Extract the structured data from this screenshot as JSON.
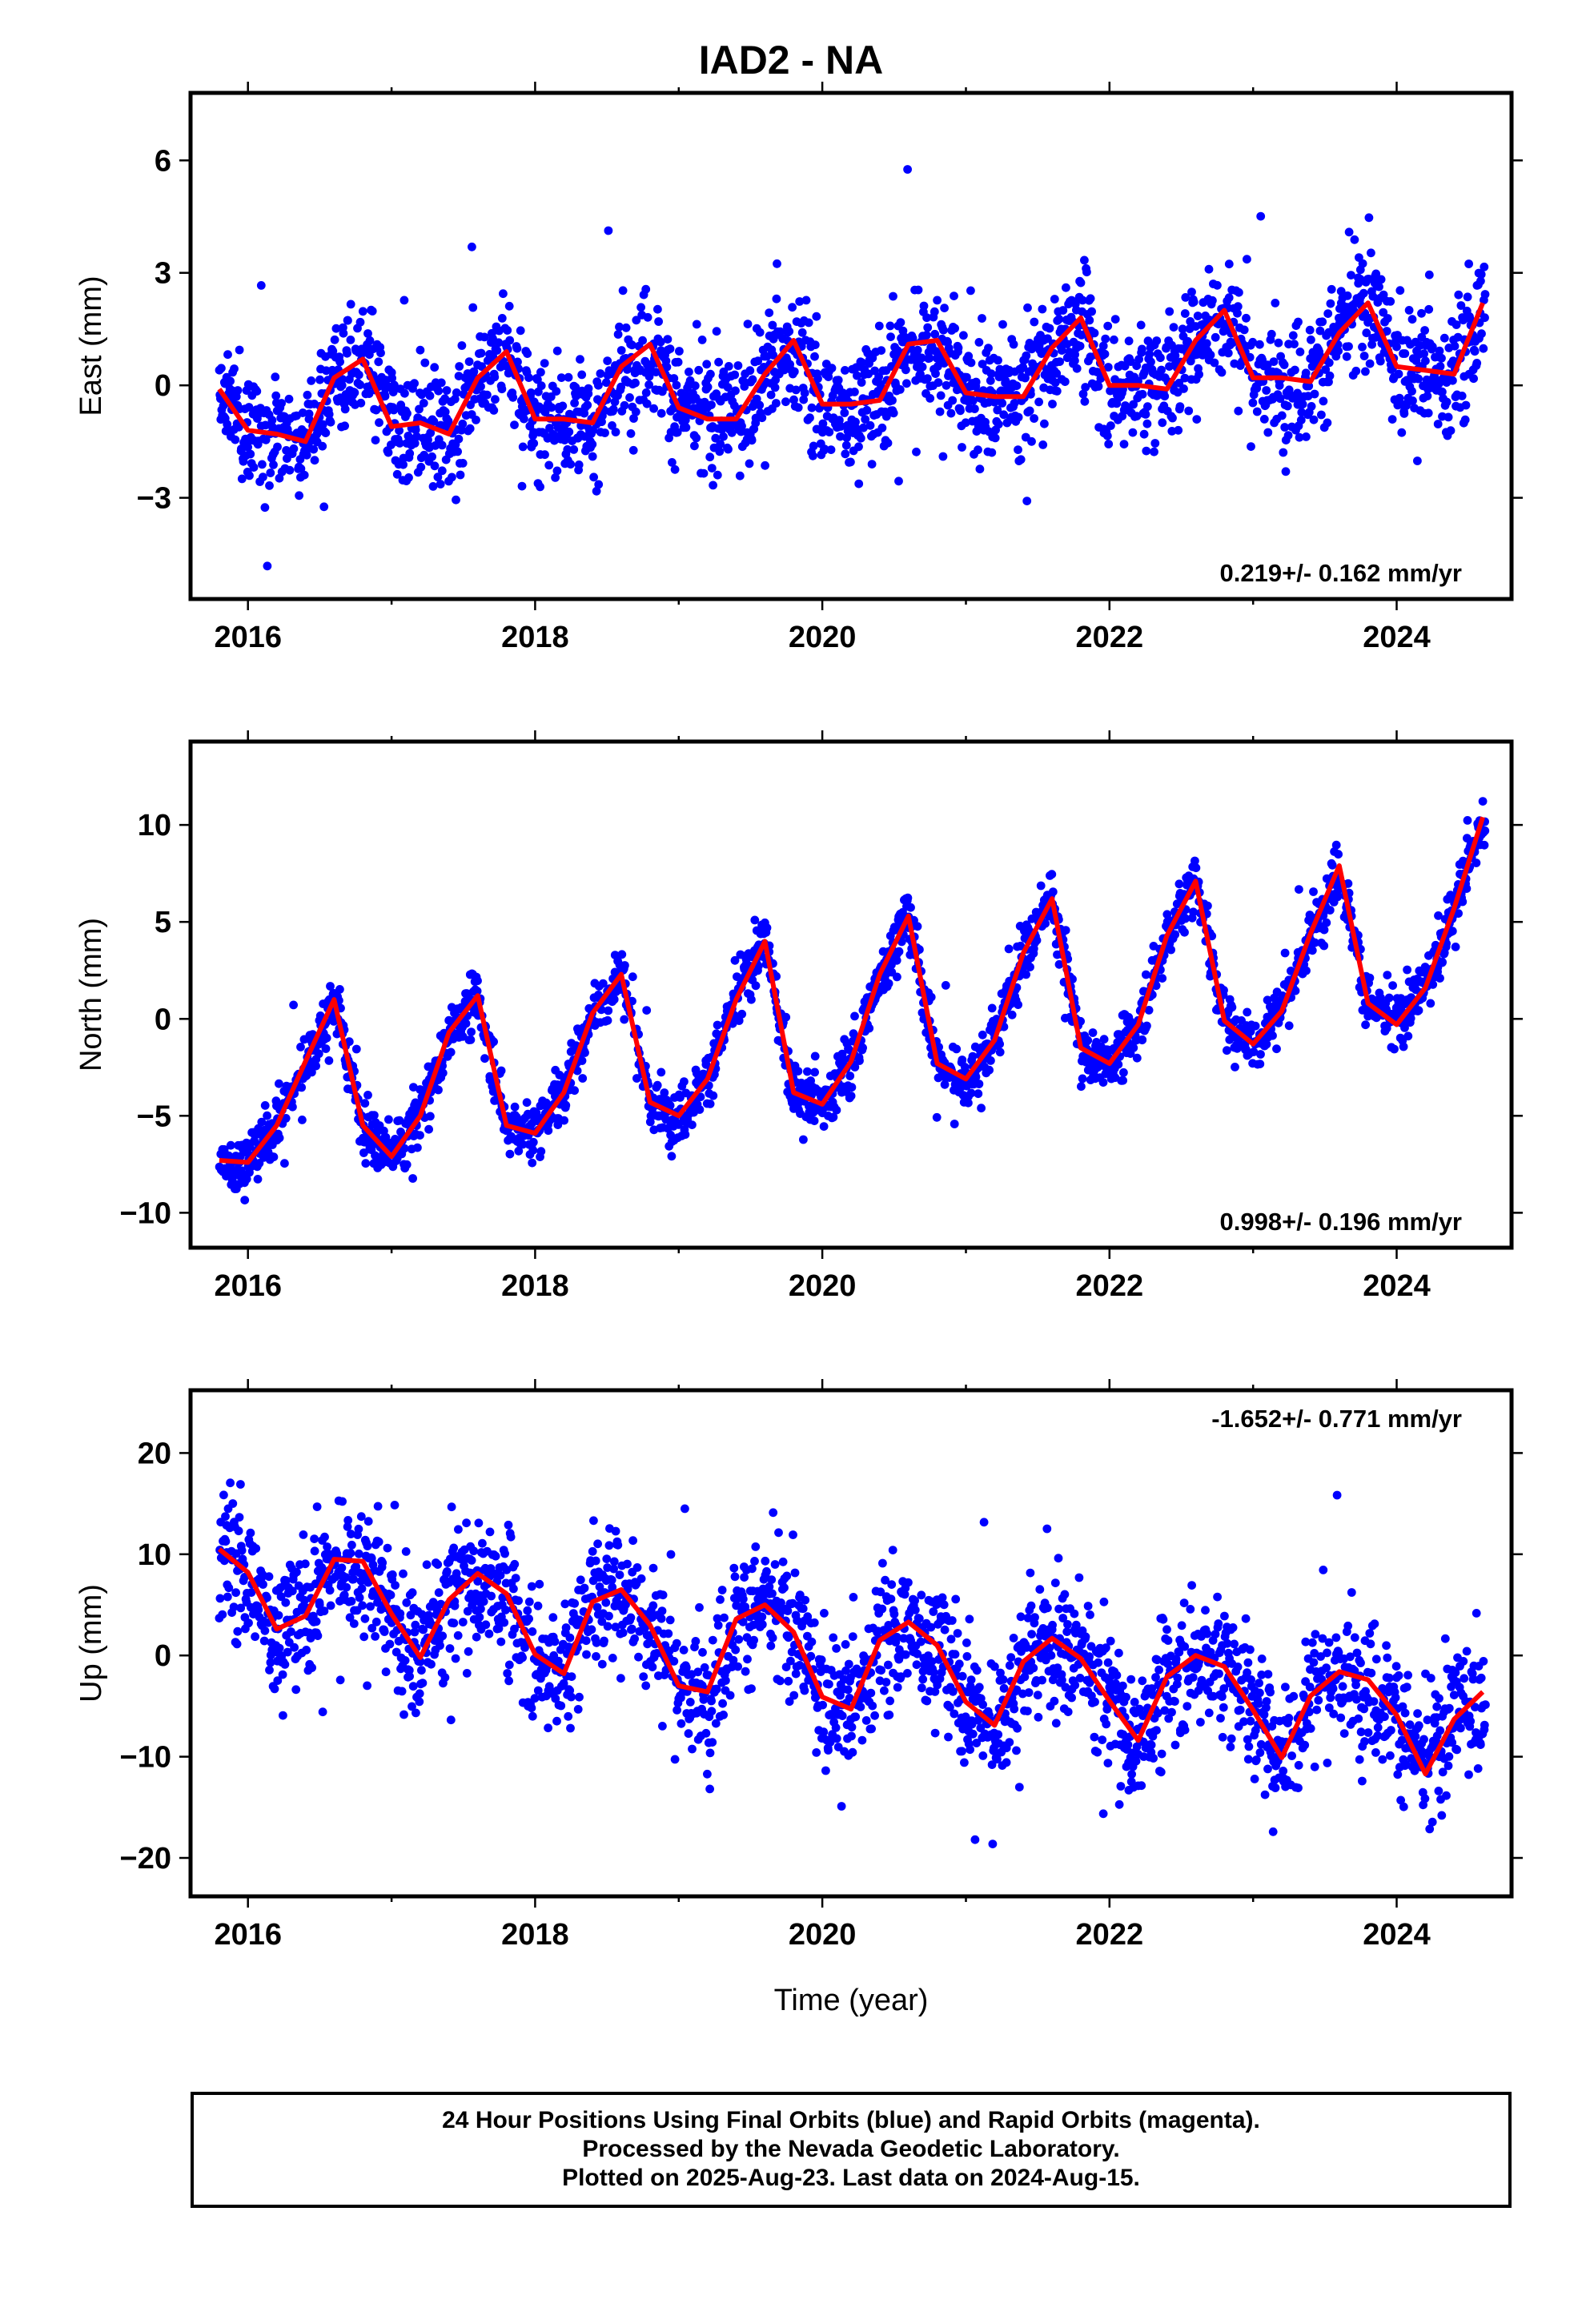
{
  "title": "IAD2 - NA",
  "xlabel": "Time (year)",
  "caption": {
    "line1": "24 Hour Positions Using Final Orbits (blue) and Rapid Orbits (magenta).",
    "line2": "Processed by the Nevada Geodetic Laboratory.",
    "line3": "Plotted on 2025-Aug-23. Last data on 2024-Aug-15."
  },
  "colors": {
    "points": "#0000ff",
    "model": "#ff0000",
    "frame": "#000000"
  },
  "chart_data": [
    {
      "type": "scatter",
      "ylabel": "East (mm)",
      "rate_text": "0.219+/- 0.162 mm/yr",
      "rate_position": "bottom-right",
      "xlim": [
        2015.6,
        2024.8
      ],
      "ylim": [
        -5.7,
        7.8
      ],
      "xticks": [
        2016,
        2018,
        2020,
        2022,
        2024
      ],
      "xtick_labels": [
        "2016",
        "2018",
        "2020",
        "2022",
        "2024"
      ],
      "yticks": [
        -3,
        0,
        3,
        6
      ],
      "ytick_labels": [
        "−3",
        "0",
        "3",
        "6"
      ],
      "grid": false,
      "model": {
        "name": "",
        "x": [
          2015.8,
          2016.0,
          2016.2,
          2016.4,
          2016.6,
          2016.8,
          2017.0,
          2017.2,
          2017.4,
          2017.6,
          2017.8,
          2018.0,
          2018.2,
          2018.4,
          2018.6,
          2018.8,
          2019.0,
          2019.2,
          2019.4,
          2019.6,
          2019.8,
          2020.0,
          2020.2,
          2020.4,
          2020.6,
          2020.8,
          2021.0,
          2021.2,
          2021.4,
          2021.6,
          2021.8,
          2022.0,
          2022.2,
          2022.4,
          2022.6,
          2022.8,
          2023.0,
          2023.2,
          2023.4,
          2023.6,
          2023.8,
          2024.0,
          2024.2,
          2024.4,
          2024.6
        ],
        "y": [
          -0.1,
          -1.2,
          -1.3,
          -1.5,
          0.2,
          0.7,
          -1.1,
          -1.0,
          -1.3,
          0.2,
          0.9,
          -0.9,
          -0.9,
          -1.0,
          0.5,
          1.1,
          -0.6,
          -0.9,
          -0.9,
          0.3,
          1.2,
          -0.5,
          -0.5,
          -0.4,
          1.1,
          1.2,
          -0.2,
          -0.3,
          -0.3,
          1.0,
          1.8,
          0.0,
          0.0,
          -0.1,
          1.2,
          2.0,
          0.2,
          0.2,
          0.1,
          1.4,
          2.2,
          0.5,
          0.4,
          0.3,
          2.2
        ]
      },
      "points": {
        "count": 2900,
        "x_range": [
          2015.8,
          2024.62
        ],
        "note_free": true
      },
      "series": [
        {
          "name": "",
          "kind": "daily positions",
          "x_start": 2015.8,
          "x_end": 2024.62,
          "spread_mm": 1.1
        }
      ]
    },
    {
      "type": "scatter",
      "ylabel": "North (mm)",
      "rate_text": "0.998+/- 0.196 mm/yr",
      "rate_position": "bottom-right",
      "xlim": [
        2015.6,
        2024.8
      ],
      "ylim": [
        -11.8,
        14.3
      ],
      "xticks": [
        2016,
        2018,
        2020,
        2022,
        2024
      ],
      "xtick_labels": [
        "2016",
        "2018",
        "2020",
        "2022",
        "2024"
      ],
      "yticks": [
        -10,
        -5,
        0,
        5,
        10
      ],
      "ytick_labels": [
        "−10",
        "−5",
        "0",
        "5",
        "10"
      ],
      "grid": false,
      "model": {
        "name": "",
        "x": [
          2015.8,
          2016.0,
          2016.2,
          2016.4,
          2016.6,
          2016.8,
          2017.0,
          2017.2,
          2017.4,
          2017.6,
          2017.8,
          2018.0,
          2018.2,
          2018.4,
          2018.6,
          2018.8,
          2019.0,
          2019.2,
          2019.4,
          2019.6,
          2019.8,
          2020.0,
          2020.2,
          2020.4,
          2020.6,
          2020.8,
          2021.0,
          2021.2,
          2021.4,
          2021.6,
          2021.8,
          2022.0,
          2022.2,
          2022.4,
          2022.6,
          2022.8,
          2023.0,
          2023.2,
          2023.4,
          2023.6,
          2023.8,
          2024.0,
          2024.2,
          2024.4,
          2024.6
        ],
        "y": [
          -7.3,
          -7.4,
          -5.5,
          -2.2,
          1.0,
          -5.5,
          -7.1,
          -5.0,
          -0.7,
          1.2,
          -5.5,
          -5.9,
          -3.8,
          0.3,
          2.3,
          -4.3,
          -5.0,
          -3.1,
          1.0,
          4.0,
          -3.8,
          -4.4,
          -2.2,
          2.3,
          5.3,
          -2.3,
          -3.1,
          -1.1,
          3.4,
          6.2,
          -1.5,
          -2.3,
          -0.3,
          4.3,
          7.1,
          -0.1,
          -1.3,
          0.4,
          4.4,
          7.9,
          0.8,
          -0.3,
          1.6,
          5.7,
          10.4
        ]
      },
      "series": [
        {
          "name": "",
          "kind": "daily positions",
          "x_start": 2015.8,
          "x_end": 2024.62,
          "spread_mm": 1.0
        }
      ]
    },
    {
      "type": "scatter",
      "ylabel": "Up (mm)",
      "rate_text": "-1.652+/- 0.771 mm/yr",
      "rate_position": "top-right",
      "xlim": [
        2015.6,
        2024.8
      ],
      "ylim": [
        -23.8,
        26.2
      ],
      "xticks": [
        2016,
        2018,
        2020,
        2022,
        2024
      ],
      "xtick_labels": [
        "2016",
        "2018",
        "2020",
        "2022",
        "2024"
      ],
      "yticks": [
        -20,
        -10,
        0,
        10,
        20
      ],
      "ytick_labels": [
        "−20",
        "−10",
        "0",
        "10",
        "20"
      ],
      "grid": false,
      "model": {
        "name": "",
        "x": [
          2015.8,
          2016.0,
          2016.2,
          2016.4,
          2016.6,
          2016.8,
          2017.0,
          2017.2,
          2017.4,
          2017.6,
          2017.8,
          2018.0,
          2018.2,
          2018.4,
          2018.6,
          2018.8,
          2019.0,
          2019.2,
          2019.4,
          2019.6,
          2019.8,
          2020.0,
          2020.2,
          2020.4,
          2020.6,
          2020.8,
          2021.0,
          2021.2,
          2021.4,
          2021.6,
          2021.8,
          2022.0,
          2022.2,
          2022.4,
          2022.6,
          2022.8,
          2023.0,
          2023.2,
          2023.4,
          2023.6,
          2023.8,
          2024.0,
          2024.2,
          2024.4,
          2024.6
        ],
        "y": [
          10.5,
          8.2,
          2.6,
          3.9,
          9.5,
          9.3,
          4.1,
          -0.2,
          5.5,
          8.1,
          6.1,
          0.1,
          -1.8,
          5.3,
          6.5,
          3.0,
          -3.0,
          -3.6,
          3.6,
          5.0,
          2.3,
          -4.1,
          -5.3,
          1.5,
          3.3,
          1.0,
          -4.6,
          -6.9,
          -0.6,
          1.7,
          -0.3,
          -4.5,
          -8.4,
          -2.1,
          0.0,
          -1.1,
          -5.4,
          -10.1,
          -4.0,
          -1.6,
          -2.4,
          -5.9,
          -11.7,
          -6.3,
          -3.6
        ]
      },
      "series": [
        {
          "name": "",
          "kind": "daily positions",
          "x_start": 2015.8,
          "x_end": 2024.62,
          "spread_mm": 4.5
        }
      ]
    }
  ]
}
